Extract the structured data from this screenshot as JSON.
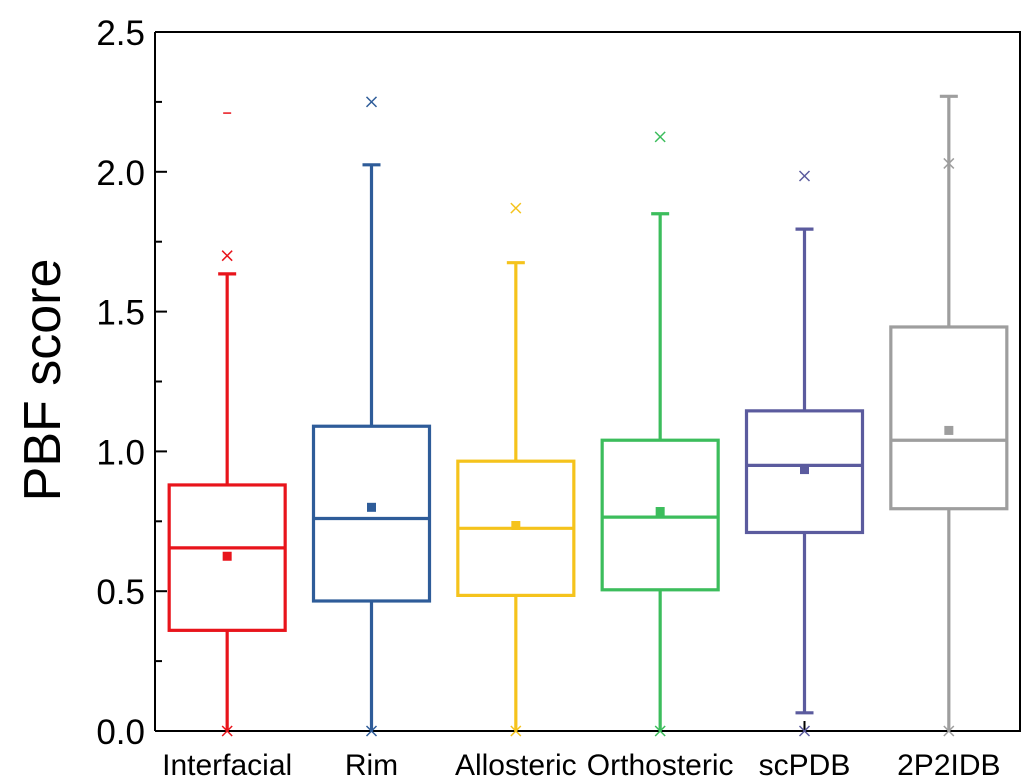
{
  "chart_data": {
    "type": "box",
    "ylabel": "PBF score",
    "xlabel": "",
    "ylim": [
      0,
      2.5
    ],
    "yticks": [
      "0.0",
      "0.5",
      "1.0",
      "1.5",
      "2.0",
      "2.5"
    ],
    "grid": false,
    "legend": "none",
    "categories": [
      "Interfacial",
      "Rim",
      "Allosteric",
      "Orthosteric",
      "scPDB",
      "2P2IDB"
    ],
    "colors": [
      "#e8141b",
      "#2e5c99",
      "#f5c31c",
      "#3cbd5c",
      "#5b5b9e",
      "#9e9e9e"
    ],
    "boxes": [
      {
        "name": "Interfacial",
        "whisker_low": 0.0,
        "q1": 0.36,
        "median": 0.655,
        "q3": 0.88,
        "whisker_high": 1.635,
        "mean": 0.625,
        "outlier_x_top": 1.7,
        "outlier_x_bottom": 0.0,
        "max_dash": 2.21
      },
      {
        "name": "Rim",
        "whisker_low": 0.0,
        "q1": 0.465,
        "median": 0.76,
        "q3": 1.09,
        "whisker_high": 2.025,
        "mean": 0.8,
        "outlier_x_top": 2.25,
        "outlier_x_bottom": 0.0
      },
      {
        "name": "Allosteric",
        "whisker_low": 0.0,
        "q1": 0.485,
        "median": 0.725,
        "q3": 0.965,
        "whisker_high": 1.675,
        "mean": 0.735,
        "outlier_x_top": 1.87,
        "outlier_x_bottom": 0.0
      },
      {
        "name": "Orthosteric",
        "whisker_low": 0.0,
        "q1": 0.505,
        "median": 0.765,
        "q3": 1.04,
        "whisker_high": 1.85,
        "mean": 0.785,
        "outlier_x_top": 2.125,
        "outlier_x_bottom": 0.0
      },
      {
        "name": "scPDB",
        "whisker_low": 0.065,
        "q1": 0.71,
        "median": 0.95,
        "q3": 1.145,
        "whisker_high": 1.795,
        "mean": 0.935,
        "outlier_x_top": 1.985,
        "outlier_x_bottom": 0.0
      },
      {
        "name": "2P2IDB",
        "whisker_low": 0.0,
        "q1": 0.795,
        "median": 1.04,
        "q3": 1.445,
        "whisker_high": 2.27,
        "mean": 1.075,
        "outlier_x_top": 2.03,
        "outlier_x_bottom": 0.0
      }
    ]
  }
}
